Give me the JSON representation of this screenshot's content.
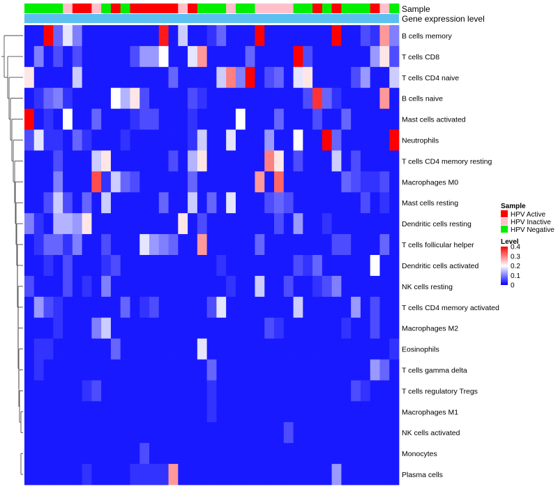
{
  "chart_data": {
    "type": "heatmap",
    "title": "",
    "annotation_labels": {
      "sample": "Sample",
      "expression": "Gene expression level"
    },
    "sample_annotation": [
      "N",
      "N",
      "N",
      "N",
      "I",
      "A",
      "A",
      "I",
      "N",
      "A",
      "N",
      "A",
      "A",
      "A",
      "A",
      "A",
      "I",
      "A",
      "N",
      "N",
      "N",
      "I",
      "N",
      "N",
      "I",
      "I",
      "I",
      "I",
      "N",
      "N",
      "A",
      "N",
      "A",
      "N",
      "N",
      "N",
      "A",
      "I",
      "N"
    ],
    "rows": [
      "B cells memory",
      "T cells CD8",
      "T cells CD4 naive",
      "B cells naive",
      "Mast cells activated",
      "Neutrophils",
      "T cells CD4 memory resting",
      "Macrophages M0",
      "Mast cells resting",
      "Dendritic cells resting",
      "T cells follicular helper",
      "Dendritic cells activated",
      "NK cells resting",
      "T cells CD4 memory activated",
      "Macrophages M2",
      "Eosinophils",
      "T cells gamma delta",
      "T cells regulatory  Tregs",
      "Macrophages M1",
      "NK cells activated",
      "Monocytes",
      "Plasma cells"
    ],
    "values": [
      [
        0.02,
        0.02,
        0.4,
        0.08,
        0.18,
        0.1,
        0.02,
        0.02,
        0.02,
        0.02,
        0.02,
        0.02,
        0.02,
        0.02,
        0.38,
        0.02,
        0.16,
        0.02,
        0.02,
        0.04,
        0.08,
        0.02,
        0.02,
        0.02,
        0.4,
        0.02,
        0.02,
        0.02,
        0.02,
        0.02,
        0.02,
        0.02,
        0.4,
        0.02,
        0.02,
        0.06,
        0.04,
        0.28,
        0.1
      ],
      [
        0.02,
        0.1,
        0.02,
        0.06,
        0.02,
        0.06,
        0.02,
        0.02,
        0.02,
        0.02,
        0.02,
        0.06,
        0.12,
        0.12,
        0.2,
        0.02,
        0.02,
        0.18,
        0.28,
        0.02,
        0.02,
        0.02,
        0.02,
        0.08,
        0.02,
        0.02,
        0.02,
        0.02,
        0.4,
        0.06,
        0.02,
        0.02,
        0.02,
        0.02,
        0.02,
        0.02,
        0.12,
        0.22,
        0.06
      ],
      [
        0.22,
        0.02,
        0.02,
        0.02,
        0.02,
        0.16,
        0.02,
        0.02,
        0.02,
        0.02,
        0.02,
        0.02,
        0.02,
        0.02,
        0.02,
        0.08,
        0.02,
        0.02,
        0.02,
        0.02,
        0.16,
        0.3,
        0.1,
        0.4,
        0.02,
        0.06,
        0.08,
        0.02,
        0.18,
        0.22,
        0.02,
        0.02,
        0.02,
        0.02,
        0.06,
        0.12,
        0.02,
        0.02,
        0.16
      ],
      [
        0.02,
        0.04,
        0.08,
        0.1,
        0.04,
        0.02,
        0.02,
        0.02,
        0.02,
        0.2,
        0.14,
        0.22,
        0.06,
        0.02,
        0.02,
        0.02,
        0.02,
        0.06,
        0.04,
        0.02,
        0.02,
        0.02,
        0.02,
        0.02,
        0.02,
        0.02,
        0.02,
        0.02,
        0.02,
        0.06,
        0.36,
        0.08,
        0.04,
        0.02,
        0.02,
        0.02,
        0.02,
        0.28,
        0.02
      ],
      [
        0.4,
        0.02,
        0.04,
        0.02,
        0.2,
        0.02,
        0.02,
        0.08,
        0.02,
        0.02,
        0.02,
        0.04,
        0.06,
        0.06,
        0.02,
        0.02,
        0.02,
        0.04,
        0.02,
        0.02,
        0.02,
        0.02,
        0.2,
        0.02,
        0.02,
        0.02,
        0.08,
        0.02,
        0.02,
        0.02,
        0.06,
        0.02,
        0.02,
        0.08,
        0.02,
        0.02,
        0.02,
        0.02,
        0.02
      ],
      [
        0.06,
        0.18,
        0.04,
        0.04,
        0.02,
        0.08,
        0.04,
        0.02,
        0.02,
        0.02,
        0.04,
        0.02,
        0.02,
        0.02,
        0.02,
        0.02,
        0.02,
        0.04,
        0.16,
        0.02,
        0.02,
        0.18,
        0.02,
        0.02,
        0.02,
        0.12,
        0.02,
        0.02,
        0.2,
        0.02,
        0.02,
        0.4,
        0.08,
        0.02,
        0.02,
        0.02,
        0.02,
        0.02,
        0.4
      ],
      [
        0.02,
        0.02,
        0.02,
        0.06,
        0.02,
        0.02,
        0.02,
        0.16,
        0.22,
        0.02,
        0.02,
        0.02,
        0.02,
        0.02,
        0.02,
        0.06,
        0.02,
        0.14,
        0.22,
        0.02,
        0.02,
        0.02,
        0.02,
        0.02,
        0.02,
        0.3,
        0.22,
        0.02,
        0.06,
        0.02,
        0.02,
        0.02,
        0.16,
        0.02,
        0.06,
        0.02,
        0.02,
        0.02,
        0.02
      ],
      [
        0.02,
        0.02,
        0.02,
        0.1,
        0.02,
        0.02,
        0.02,
        0.34,
        0.04,
        0.16,
        0.08,
        0.06,
        0.02,
        0.02,
        0.02,
        0.02,
        0.02,
        0.08,
        0.02,
        0.02,
        0.02,
        0.02,
        0.02,
        0.02,
        0.28,
        0.02,
        0.32,
        0.02,
        0.02,
        0.02,
        0.02,
        0.02,
        0.02,
        0.08,
        0.06,
        0.04,
        0.04,
        0.06,
        0.02
      ],
      [
        0.02,
        0.02,
        0.06,
        0.16,
        0.06,
        0.02,
        0.08,
        0.02,
        0.16,
        0.02,
        0.02,
        0.02,
        0.02,
        0.02,
        0.08,
        0.02,
        0.02,
        0.16,
        0.02,
        0.08,
        0.02,
        0.18,
        0.02,
        0.02,
        0.02,
        0.06,
        0.08,
        0.06,
        0.02,
        0.02,
        0.02,
        0.02,
        0.02,
        0.02,
        0.02,
        0.06,
        0.02,
        0.04,
        0.02
      ],
      [
        0.1,
        0.04,
        0.02,
        0.14,
        0.14,
        0.12,
        0.22,
        0.02,
        0.02,
        0.02,
        0.02,
        0.02,
        0.02,
        0.02,
        0.02,
        0.02,
        0.22,
        0.02,
        0.06,
        0.02,
        0.02,
        0.02,
        0.02,
        0.02,
        0.02,
        0.02,
        0.06,
        0.02,
        0.12,
        0.02,
        0.02,
        0.04,
        0.02,
        0.02,
        0.02,
        0.02,
        0.02,
        0.02,
        0.02
      ],
      [
        0.02,
        0.04,
        0.08,
        0.08,
        0.04,
        0.1,
        0.02,
        0.02,
        0.06,
        0.02,
        0.02,
        0.02,
        0.18,
        0.12,
        0.1,
        0.08,
        0.02,
        0.02,
        0.28,
        0.02,
        0.02,
        0.02,
        0.02,
        0.02,
        0.08,
        0.02,
        0.02,
        0.02,
        0.02,
        0.02,
        0.02,
        0.02,
        0.06,
        0.06,
        0.02,
        0.02,
        0.02,
        0.08,
        0.02
      ],
      [
        0.02,
        0.02,
        0.04,
        0.02,
        0.06,
        0.02,
        0.02,
        0.02,
        0.04,
        0.06,
        0.02,
        0.02,
        0.02,
        0.02,
        0.02,
        0.02,
        0.02,
        0.02,
        0.02,
        0.02,
        0.04,
        0.02,
        0.02,
        0.02,
        0.02,
        0.02,
        0.02,
        0.02,
        0.06,
        0.04,
        0.08,
        0.02,
        0.02,
        0.02,
        0.02,
        0.02,
        0.2,
        0.02,
        0.02
      ],
      [
        0.06,
        0.02,
        0.02,
        0.02,
        0.06,
        0.02,
        0.04,
        0.02,
        0.1,
        0.02,
        0.02,
        0.02,
        0.02,
        0.02,
        0.02,
        0.02,
        0.02,
        0.02,
        0.02,
        0.02,
        0.02,
        0.04,
        0.02,
        0.02,
        0.16,
        0.02,
        0.02,
        0.06,
        0.02,
        0.02,
        0.04,
        0.06,
        0.1,
        0.02,
        0.02,
        0.02,
        0.02,
        0.02,
        0.02
      ],
      [
        0.02,
        0.12,
        0.06,
        0.04,
        0.02,
        0.02,
        0.02,
        0.02,
        0.02,
        0.02,
        0.08,
        0.02,
        0.04,
        0.06,
        0.02,
        0.02,
        0.02,
        0.02,
        0.02,
        0.06,
        0.18,
        0.02,
        0.02,
        0.02,
        0.02,
        0.02,
        0.02,
        0.02,
        0.16,
        0.02,
        0.02,
        0.02,
        0.02,
        0.02,
        0.12,
        0.02,
        0.06,
        0.02,
        0.02
      ],
      [
        0.02,
        0.02,
        0.02,
        0.04,
        0.02,
        0.02,
        0.02,
        0.1,
        0.16,
        0.02,
        0.02,
        0.02,
        0.02,
        0.02,
        0.02,
        0.02,
        0.02,
        0.02,
        0.02,
        0.02,
        0.02,
        0.02,
        0.02,
        0.02,
        0.02,
        0.06,
        0.04,
        0.02,
        0.02,
        0.02,
        0.02,
        0.02,
        0.02,
        0.04,
        0.02,
        0.02,
        0.06,
        0.02,
        0.02
      ],
      [
        0.02,
        0.04,
        0.04,
        0.02,
        0.02,
        0.02,
        0.02,
        0.02,
        0.02,
        0.08,
        0.02,
        0.02,
        0.02,
        0.02,
        0.02,
        0.02,
        0.02,
        0.02,
        0.18,
        0.02,
        0.02,
        0.02,
        0.02,
        0.02,
        0.02,
        0.02,
        0.02,
        0.02,
        0.02,
        0.02,
        0.02,
        0.02,
        0.02,
        0.02,
        0.02,
        0.02,
        0.02,
        0.02,
        0.04
      ],
      [
        0.02,
        0.04,
        0.02,
        0.02,
        0.02,
        0.02,
        0.02,
        0.02,
        0.02,
        0.02,
        0.02,
        0.02,
        0.02,
        0.02,
        0.02,
        0.02,
        0.02,
        0.02,
        0.02,
        0.08,
        0.02,
        0.02,
        0.02,
        0.02,
        0.02,
        0.02,
        0.02,
        0.02,
        0.02,
        0.02,
        0.02,
        0.02,
        0.02,
        0.02,
        0.02,
        0.02,
        0.12,
        0.08,
        0.02
      ],
      [
        0.02,
        0.02,
        0.02,
        0.02,
        0.02,
        0.02,
        0.04,
        0.06,
        0.02,
        0.02,
        0.02,
        0.02,
        0.02,
        0.02,
        0.02,
        0.02,
        0.02,
        0.02,
        0.02,
        0.04,
        0.02,
        0.02,
        0.02,
        0.02,
        0.02,
        0.02,
        0.02,
        0.02,
        0.02,
        0.02,
        0.02,
        0.02,
        0.02,
        0.02,
        0.06,
        0.04,
        0.02,
        0.02,
        0.02
      ],
      [
        0.02,
        0.02,
        0.02,
        0.02,
        0.02,
        0.02,
        0.02,
        0.02,
        0.02,
        0.02,
        0.02,
        0.02,
        0.02,
        0.02,
        0.02,
        0.02,
        0.02,
        0.02,
        0.02,
        0.04,
        0.02,
        0.02,
        0.02,
        0.02,
        0.02,
        0.02,
        0.02,
        0.02,
        0.02,
        0.02,
        0.02,
        0.02,
        0.02,
        0.02,
        0.02,
        0.02,
        0.02,
        0.02,
        0.02
      ],
      [
        0.02,
        0.02,
        0.02,
        0.02,
        0.02,
        0.02,
        0.02,
        0.02,
        0.02,
        0.02,
        0.02,
        0.02,
        0.02,
        0.02,
        0.02,
        0.02,
        0.02,
        0.02,
        0.02,
        0.02,
        0.02,
        0.02,
        0.02,
        0.02,
        0.02,
        0.02,
        0.02,
        0.06,
        0.02,
        0.02,
        0.02,
        0.02,
        0.02,
        0.02,
        0.02,
        0.02,
        0.02,
        0.02,
        0.02
      ],
      [
        0.02,
        0.02,
        0.02,
        0.02,
        0.02,
        0.02,
        0.02,
        0.02,
        0.02,
        0.02,
        0.02,
        0.02,
        0.06,
        0.02,
        0.02,
        0.02,
        0.02,
        0.02,
        0.02,
        0.02,
        0.02,
        0.02,
        0.02,
        0.02,
        0.02,
        0.02,
        0.02,
        0.02,
        0.02,
        0.02,
        0.02,
        0.02,
        0.02,
        0.02,
        0.02,
        0.02,
        0.02,
        0.02,
        0.02
      ],
      [
        0.02,
        0.02,
        0.02,
        0.02,
        0.02,
        0.02,
        0.04,
        0.02,
        0.02,
        0.02,
        0.02,
        0.04,
        0.04,
        0.04,
        0.04,
        0.28,
        0.02,
        0.02,
        0.02,
        0.02,
        0.02,
        0.02,
        0.02,
        0.02,
        0.02,
        0.02,
        0.02,
        0.02,
        0.02,
        0.02,
        0.02,
        0.02,
        0.12,
        0.02,
        0.02,
        0.02,
        0.02,
        0.02,
        0.02
      ]
    ],
    "legend_sample": {
      "title": "Sample",
      "items": [
        {
          "code": "A",
          "label": "HPV Active",
          "color": "#ff0000"
        },
        {
          "code": "I",
          "label": "HPV Inactive",
          "color": "#ffc0cb"
        },
        {
          "code": "N",
          "label": "HPV Negative",
          "color": "#00ee00"
        }
      ]
    },
    "legend_level": {
      "title": "Level",
      "ticks": [
        "0.4",
        "0.3",
        "0.2",
        "0.1",
        "0"
      ],
      "tick_values": [
        0.4,
        0.3,
        0.2,
        0.1,
        0
      ],
      "min": 0,
      "max": 0.4,
      "colors": [
        "#0000ff",
        "#ffffff",
        "#ff0000"
      ]
    },
    "expression_color": "#5bc0f0"
  }
}
